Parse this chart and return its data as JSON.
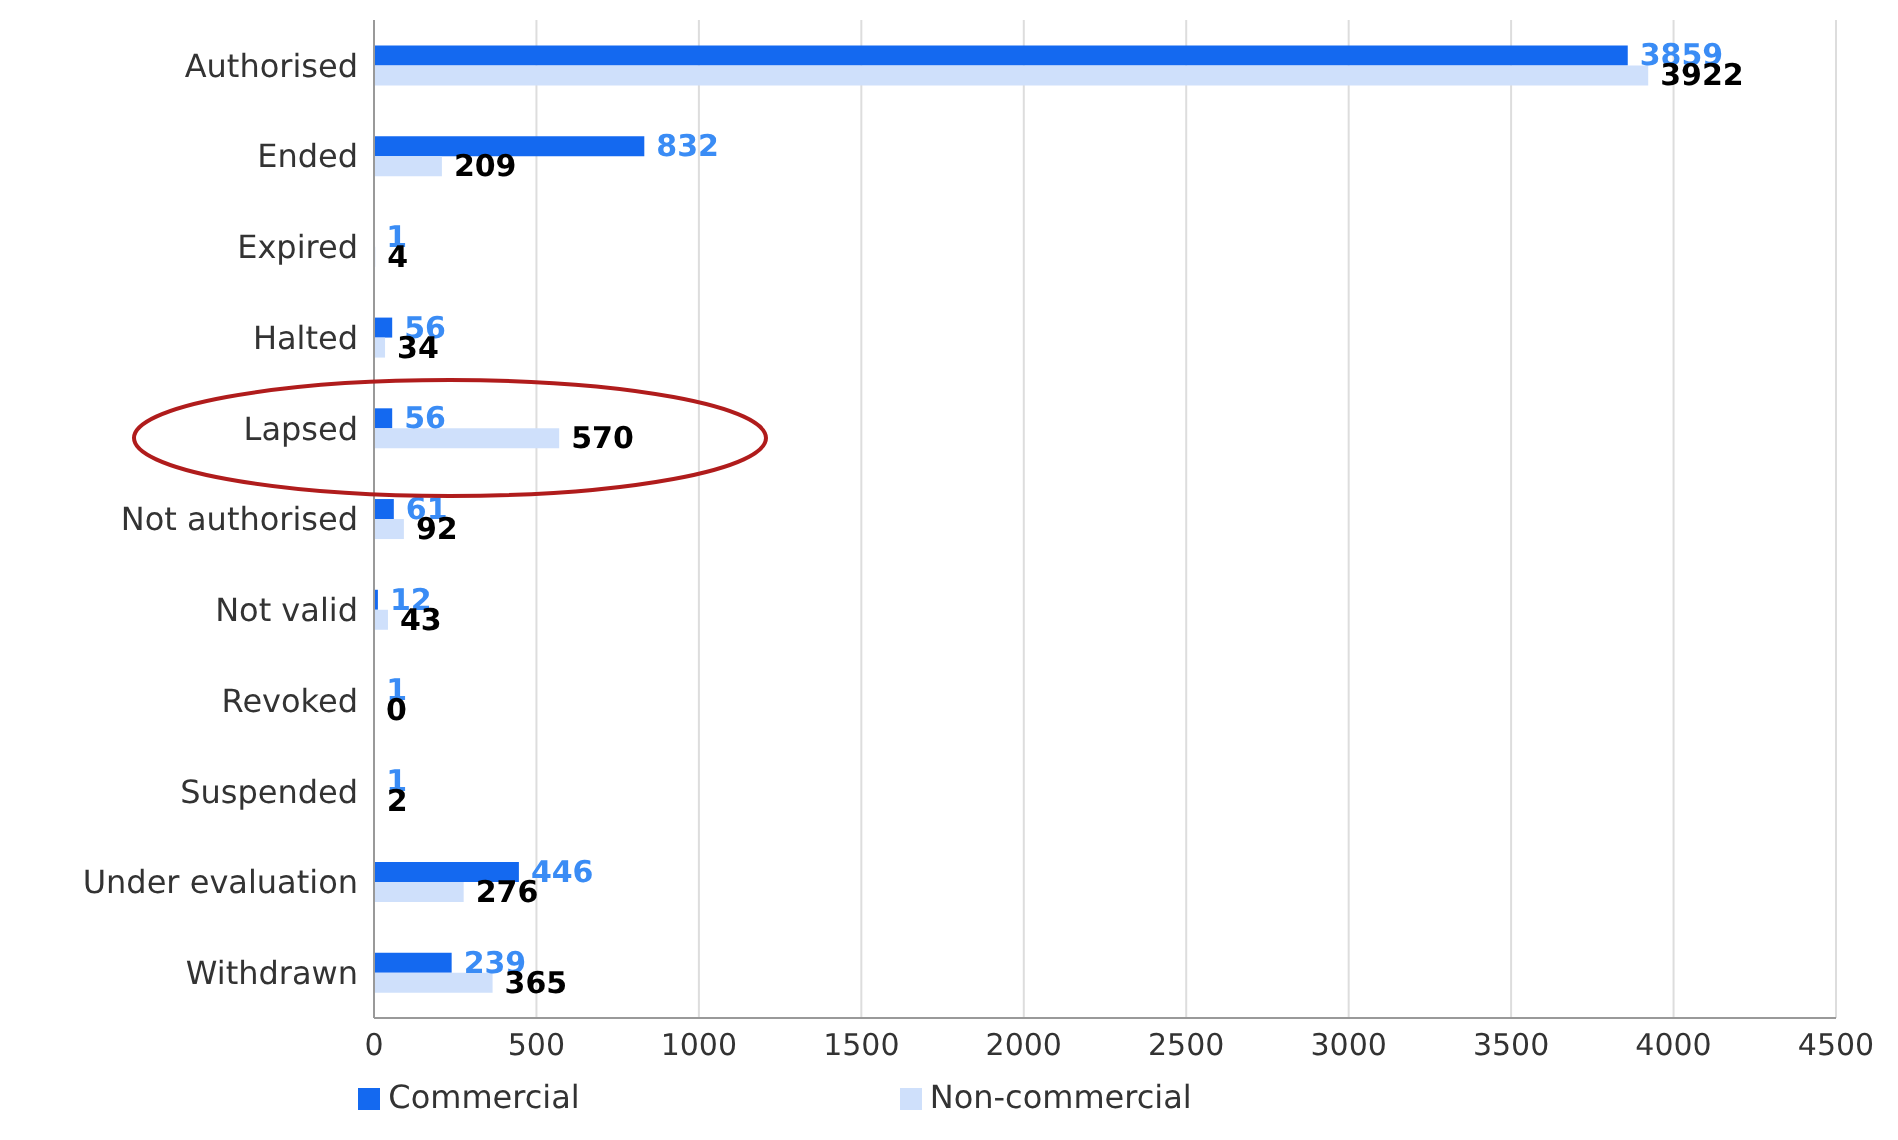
{
  "chart_data": {
    "type": "bar",
    "orientation": "horizontal",
    "categories": [
      "Authorised",
      "Ended",
      "Expired",
      "Halted",
      "Lapsed",
      "Not authorised",
      "Not valid",
      "Revoked",
      "Suspended",
      "Under evaluation",
      "Withdrawn"
    ],
    "series": [
      {
        "name": "Commercial",
        "color": "#1469f0",
        "values": [
          3859,
          832,
          1,
          56,
          56,
          61,
          12,
          1,
          1,
          446,
          239
        ]
      },
      {
        "name": "Non-commercial",
        "color": "#cfe0fb",
        "values": [
          3922,
          209,
          4,
          34,
          570,
          92,
          43,
          0,
          2,
          276,
          365
        ]
      }
    ],
    "xlim": [
      0,
      4500
    ],
    "xticks": [
      0,
      500,
      1000,
      1500,
      2000,
      2500,
      3000,
      3500,
      4000,
      4500
    ],
    "grid": "x",
    "legend": "bottom",
    "data_labels": true
  }
}
